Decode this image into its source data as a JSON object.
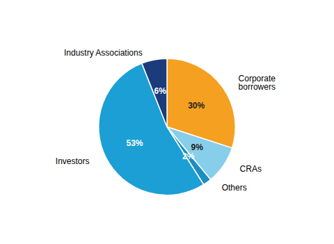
{
  "chart_data": {
    "type": "pie",
    "categories": [
      "Corporate\nborrowers",
      "CRAs",
      "Others",
      "Investors",
      "Industry Associations"
    ],
    "values": [
      30,
      9,
      2,
      53,
      6
    ],
    "value_labels": [
      "30%",
      "9%",
      "2%",
      "53%",
      "6%"
    ],
    "colors": [
      "#F5A020",
      "#87CEEB",
      "#1B8FC0",
      "#1B9FD4",
      "#1C3B7B"
    ],
    "data_labels": true
  }
}
